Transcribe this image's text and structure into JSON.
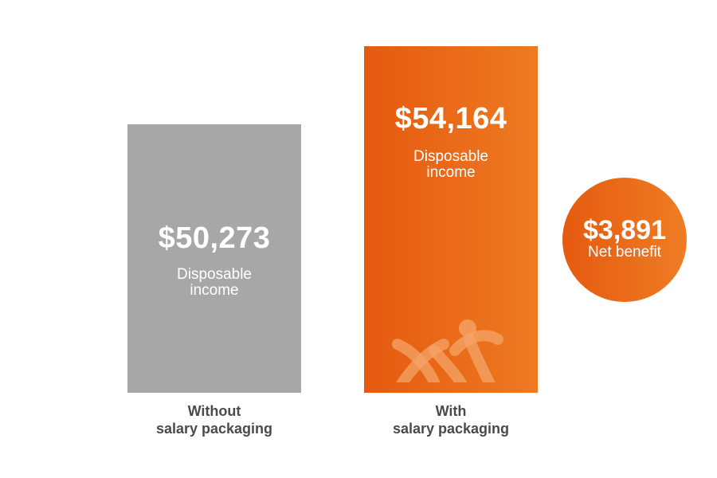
{
  "chart_data": {
    "type": "bar",
    "categories": [
      "Without salary packaging",
      "With salary packaging"
    ],
    "values": [
      50273,
      54164
    ],
    "title": "",
    "xlabel": "",
    "ylabel": "",
    "value_labels": [
      "$50,273",
      "$54,164"
    ],
    "bar_caption_line1": "Disposable",
    "bar_caption_line2": "income",
    "category_lines": [
      [
        "Without",
        "salary packaging"
      ],
      [
        "With",
        "salary packaging"
      ]
    ],
    "colors": {
      "without": "#a7a7a7",
      "with_start": "#e55a0f",
      "with_end": "#ee7a22",
      "label_text": "#4a4a4a"
    },
    "net_benefit": {
      "value": 3891,
      "value_label": "$3,891",
      "caption": "Net benefit"
    }
  }
}
